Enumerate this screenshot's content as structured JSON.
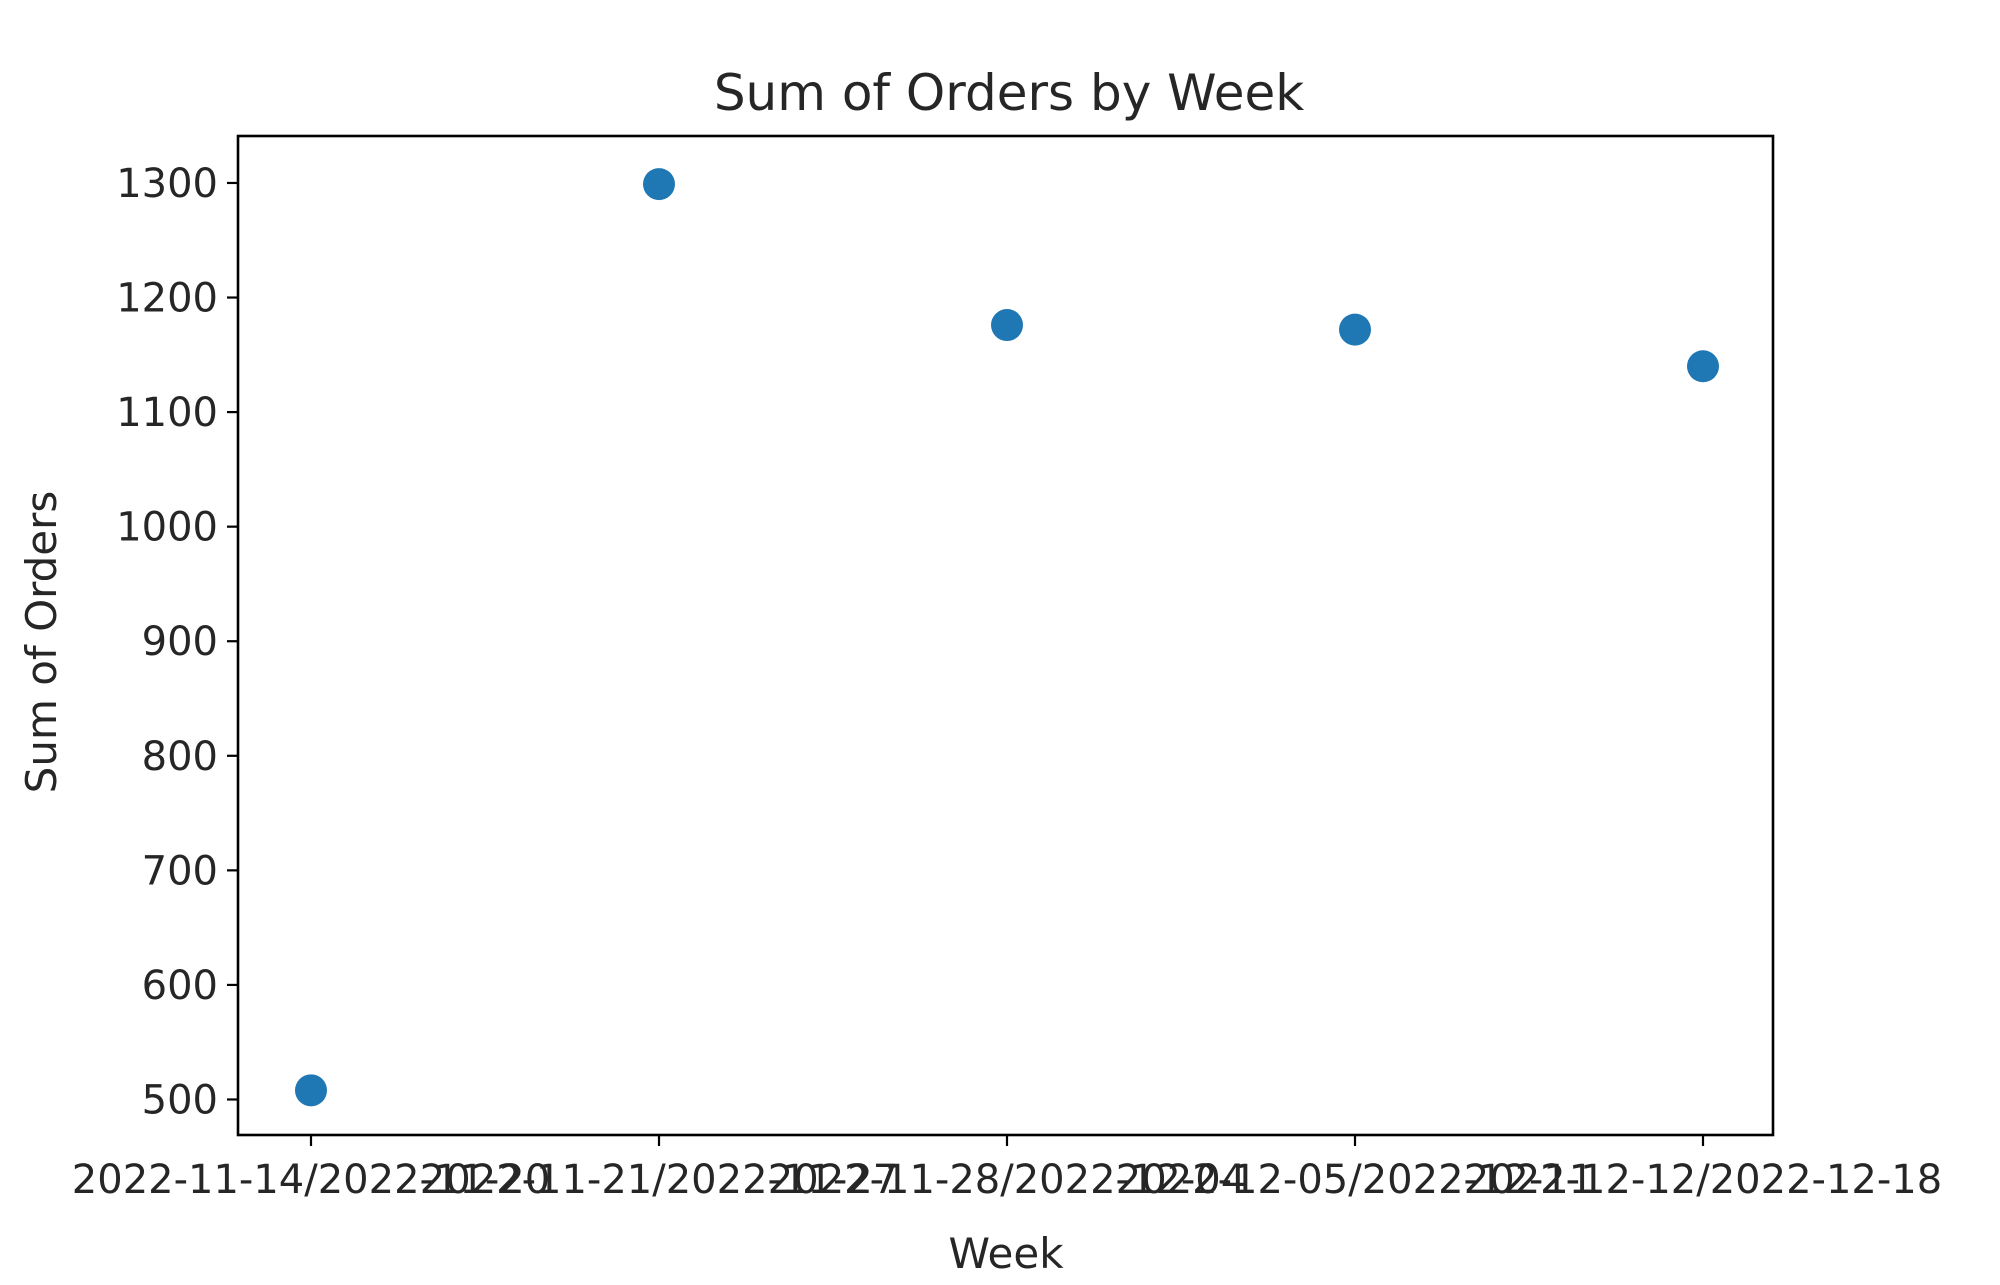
{
  "chart_data": {
    "type": "scatter",
    "title": "Sum of Orders by Week",
    "xlabel": "Week",
    "ylabel": "Sum of Orders",
    "categories": [
      "2022-11-14/2022-11-20",
      "2022-11-21/2022-11-27",
      "2022-11-28/2022-12-04",
      "2022-12-05/2022-12-11",
      "2022-12-12/2022-12-18"
    ],
    "values": [
      508,
      1299,
      1176,
      1172,
      1140
    ],
    "yticks": [
      500,
      600,
      700,
      800,
      900,
      1000,
      1100,
      1200,
      1300
    ],
    "ylim": [
      469,
      1341
    ],
    "grid": false,
    "marker_color": "#1f77b4"
  }
}
